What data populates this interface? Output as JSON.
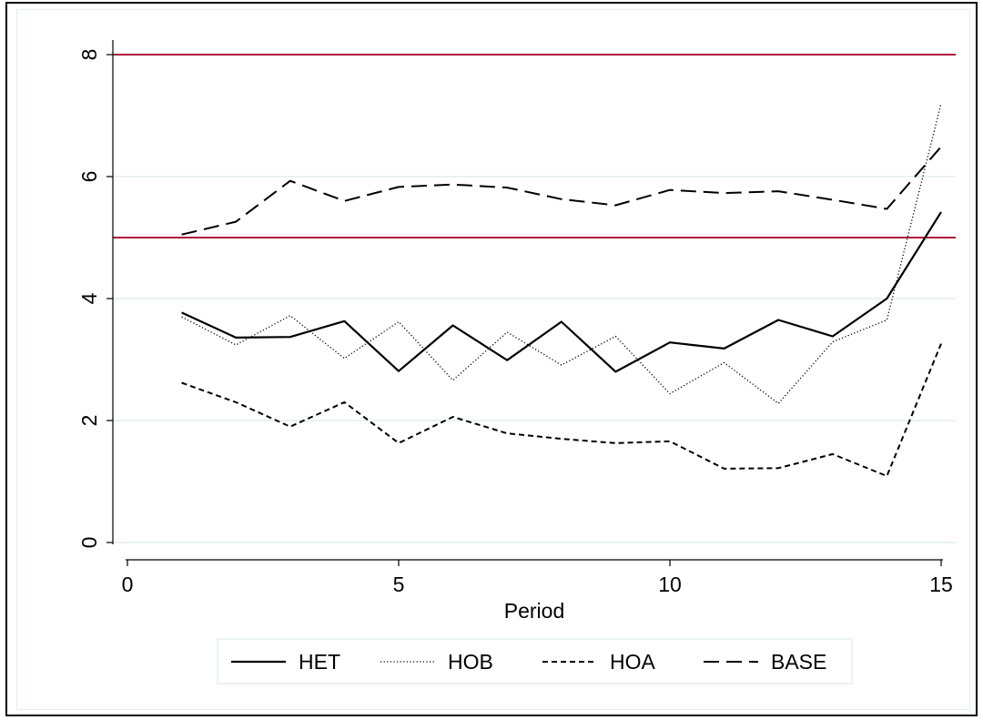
{
  "chart_data": {
    "type": "line",
    "title": "",
    "xlabel": "Period",
    "ylabel": "",
    "xlim": [
      0,
      15
    ],
    "ylim": [
      0,
      8
    ],
    "x_ticks": [
      0,
      5,
      10,
      15
    ],
    "y_ticks": [
      0,
      2,
      4,
      6,
      8
    ],
    "grid": true,
    "legend_position": "bottom",
    "reference_lines": [
      {
        "y": 8,
        "color": "#b0183c"
      },
      {
        "y": 5,
        "color": "#b0183c"
      }
    ],
    "x": [
      1,
      2,
      3,
      4,
      5,
      6,
      7,
      8,
      9,
      10,
      11,
      12,
      13,
      14,
      15
    ],
    "series": [
      {
        "name": "HET",
        "style": "solid",
        "values": [
          3.77,
          3.36,
          3.37,
          3.63,
          2.81,
          3.56,
          2.99,
          3.62,
          2.8,
          3.28,
          3.18,
          3.65,
          3.38,
          4.0,
          5.42
        ]
      },
      {
        "name": "HOB",
        "style": "dotted",
        "values": [
          3.7,
          3.24,
          3.72,
          3.02,
          3.62,
          2.66,
          3.45,
          2.91,
          3.38,
          2.44,
          2.95,
          2.28,
          3.29,
          3.65,
          7.2
        ]
      },
      {
        "name": "HOA",
        "style": "short-dash",
        "values": [
          2.62,
          2.3,
          1.9,
          2.3,
          1.63,
          2.06,
          1.79,
          1.7,
          1.63,
          1.66,
          1.21,
          1.22,
          1.45,
          1.09,
          3.26
        ]
      },
      {
        "name": "BASE",
        "style": "long-dash",
        "values": [
          5.05,
          5.26,
          5.93,
          5.6,
          5.83,
          5.87,
          5.82,
          5.63,
          5.53,
          5.78,
          5.73,
          5.76,
          5.62,
          5.47,
          6.49
        ]
      }
    ]
  }
}
